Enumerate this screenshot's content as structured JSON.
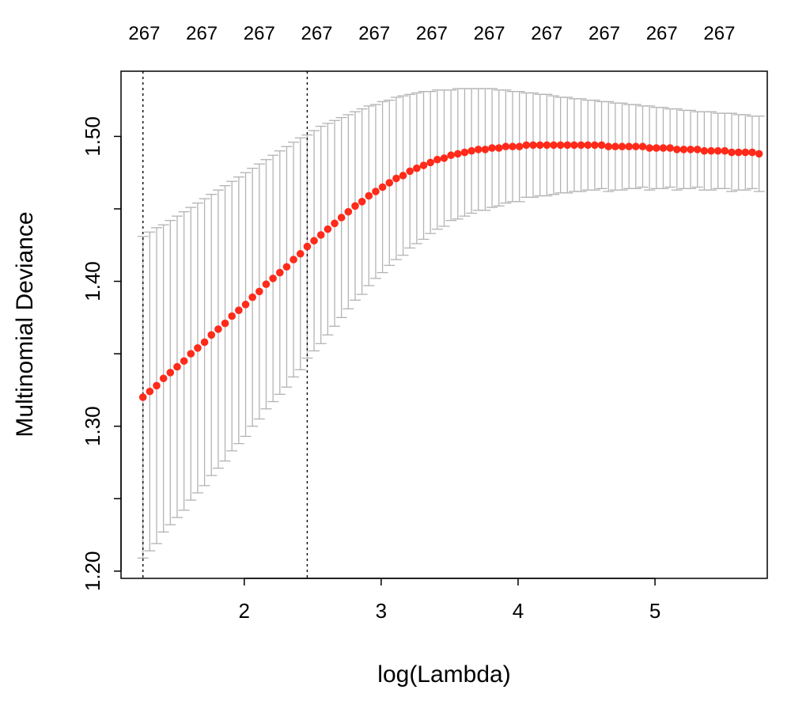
{
  "chart_data": {
    "type": "line",
    "xlabel": "log(Lambda)",
    "ylabel": "Multinomial Deviance",
    "xlim": [
      1.1,
      5.82
    ],
    "ylim": [
      1.195,
      1.545
    ],
    "x_ticks": [
      {
        "value": 2,
        "label": "2"
      },
      {
        "value": 3,
        "label": "3"
      },
      {
        "value": 4,
        "label": "4"
      },
      {
        "value": 5,
        "label": "5"
      }
    ],
    "y_ticks": [
      {
        "value": 1.2,
        "label": "1.20"
      },
      {
        "value": 1.25,
        "label": ""
      },
      {
        "value": 1.3,
        "label": "1.30"
      },
      {
        "value": 1.35,
        "label": ""
      },
      {
        "value": 1.4,
        "label": "1.40"
      },
      {
        "value": 1.45,
        "label": ""
      },
      {
        "value": 1.5,
        "label": "1.50"
      }
    ],
    "top_axis": {
      "values": [
        1.27,
        1.69,
        2.11,
        2.53,
        2.95,
        3.37,
        3.79,
        4.21,
        4.63,
        5.05,
        5.47
      ],
      "labels": [
        "267",
        "267",
        "267",
        "267",
        "267",
        "267",
        "267",
        "267",
        "267",
        "267",
        "267"
      ]
    },
    "vlines": [
      1.26,
      2.46
    ],
    "grid": false,
    "series": [
      {
        "color": "#ff2a1a",
        "error_bar_color": "#b3b3b3",
        "x": [
          1.26,
          1.31,
          1.36,
          1.41,
          1.46,
          1.51,
          1.56,
          1.61,
          1.66,
          1.71,
          1.76,
          1.81,
          1.86,
          1.91,
          1.96,
          2.01,
          2.06,
          2.11,
          2.16,
          2.21,
          2.26,
          2.31,
          2.36,
          2.41,
          2.46,
          2.51,
          2.56,
          2.61,
          2.66,
          2.71,
          2.76,
          2.81,
          2.86,
          2.91,
          2.96,
          3.01,
          3.06,
          3.11,
          3.16,
          3.21,
          3.26,
          3.31,
          3.36,
          3.41,
          3.46,
          3.51,
          3.56,
          3.61,
          3.66,
          3.71,
          3.76,
          3.81,
          3.86,
          3.91,
          3.96,
          4.01,
          4.06,
          4.11,
          4.16,
          4.21,
          4.26,
          4.31,
          4.36,
          4.41,
          4.46,
          4.51,
          4.56,
          4.61,
          4.66,
          4.71,
          4.76,
          4.81,
          4.86,
          4.91,
          4.96,
          5.01,
          5.06,
          5.11,
          5.16,
          5.21,
          5.26,
          5.31,
          5.36,
          5.41,
          5.46,
          5.51,
          5.56,
          5.61,
          5.66,
          5.71,
          5.76
        ],
        "y": [
          1.32,
          1.324,
          1.328,
          1.333,
          1.337,
          1.341,
          1.345,
          1.35,
          1.354,
          1.358,
          1.363,
          1.367,
          1.371,
          1.376,
          1.38,
          1.384,
          1.389,
          1.393,
          1.398,
          1.402,
          1.406,
          1.41,
          1.415,
          1.419,
          1.424,
          1.428,
          1.432,
          1.436,
          1.44,
          1.444,
          1.448,
          1.452,
          1.455,
          1.459,
          1.462,
          1.465,
          1.468,
          1.471,
          1.473,
          1.476,
          1.478,
          1.48,
          1.482,
          1.484,
          1.485,
          1.487,
          1.488,
          1.489,
          1.49,
          1.491,
          1.491,
          1.492,
          1.492,
          1.493,
          1.493,
          1.493,
          1.494,
          1.494,
          1.494,
          1.494,
          1.494,
          1.494,
          1.494,
          1.494,
          1.494,
          1.494,
          1.494,
          1.494,
          1.493,
          1.493,
          1.493,
          1.493,
          1.493,
          1.493,
          1.492,
          1.492,
          1.492,
          1.492,
          1.491,
          1.491,
          1.491,
          1.491,
          1.49,
          1.49,
          1.49,
          1.49,
          1.489,
          1.489,
          1.489,
          1.489,
          1.488
        ],
        "upper": [
          1.431,
          1.434,
          1.437,
          1.439,
          1.442,
          1.445,
          1.448,
          1.451,
          1.454,
          1.457,
          1.46,
          1.463,
          1.466,
          1.469,
          1.472,
          1.475,
          1.478,
          1.481,
          1.484,
          1.487,
          1.49,
          1.493,
          1.496,
          1.499,
          1.501,
          1.504,
          1.507,
          1.509,
          1.511,
          1.513,
          1.515,
          1.517,
          1.519,
          1.521,
          1.522,
          1.524,
          1.525,
          1.527,
          1.528,
          1.529,
          1.53,
          1.531,
          1.531,
          1.532,
          1.532,
          1.532,
          1.533,
          1.533,
          1.533,
          1.533,
          1.533,
          1.533,
          1.532,
          1.532,
          1.531,
          1.531,
          1.53,
          1.53,
          1.529,
          1.529,
          1.528,
          1.527,
          1.527,
          1.526,
          1.526,
          1.525,
          1.525,
          1.524,
          1.524,
          1.523,
          1.523,
          1.522,
          1.522,
          1.521,
          1.521,
          1.52,
          1.52,
          1.519,
          1.519,
          1.518,
          1.518,
          1.517,
          1.517,
          1.517,
          1.516,
          1.516,
          1.516,
          1.515,
          1.515,
          1.514,
          1.514
        ],
        "lower": [
          1.209,
          1.214,
          1.219,
          1.227,
          1.232,
          1.237,
          1.242,
          1.249,
          1.254,
          1.259,
          1.266,
          1.271,
          1.276,
          1.283,
          1.288,
          1.293,
          1.3,
          1.305,
          1.312,
          1.317,
          1.322,
          1.327,
          1.334,
          1.339,
          1.347,
          1.352,
          1.357,
          1.363,
          1.369,
          1.375,
          1.381,
          1.387,
          1.391,
          1.397,
          1.402,
          1.406,
          1.411,
          1.415,
          1.418,
          1.423,
          1.426,
          1.429,
          1.433,
          1.436,
          1.438,
          1.442,
          1.443,
          1.445,
          1.447,
          1.449,
          1.449,
          1.451,
          1.452,
          1.454,
          1.455,
          1.455,
          1.458,
          1.458,
          1.459,
          1.459,
          1.46,
          1.461,
          1.461,
          1.462,
          1.462,
          1.463,
          1.463,
          1.464,
          1.462,
          1.463,
          1.463,
          1.464,
          1.464,
          1.465,
          1.463,
          1.464,
          1.464,
          1.465,
          1.463,
          1.464,
          1.464,
          1.465,
          1.463,
          1.463,
          1.464,
          1.464,
          1.462,
          1.463,
          1.463,
          1.464,
          1.462
        ]
      }
    ]
  }
}
